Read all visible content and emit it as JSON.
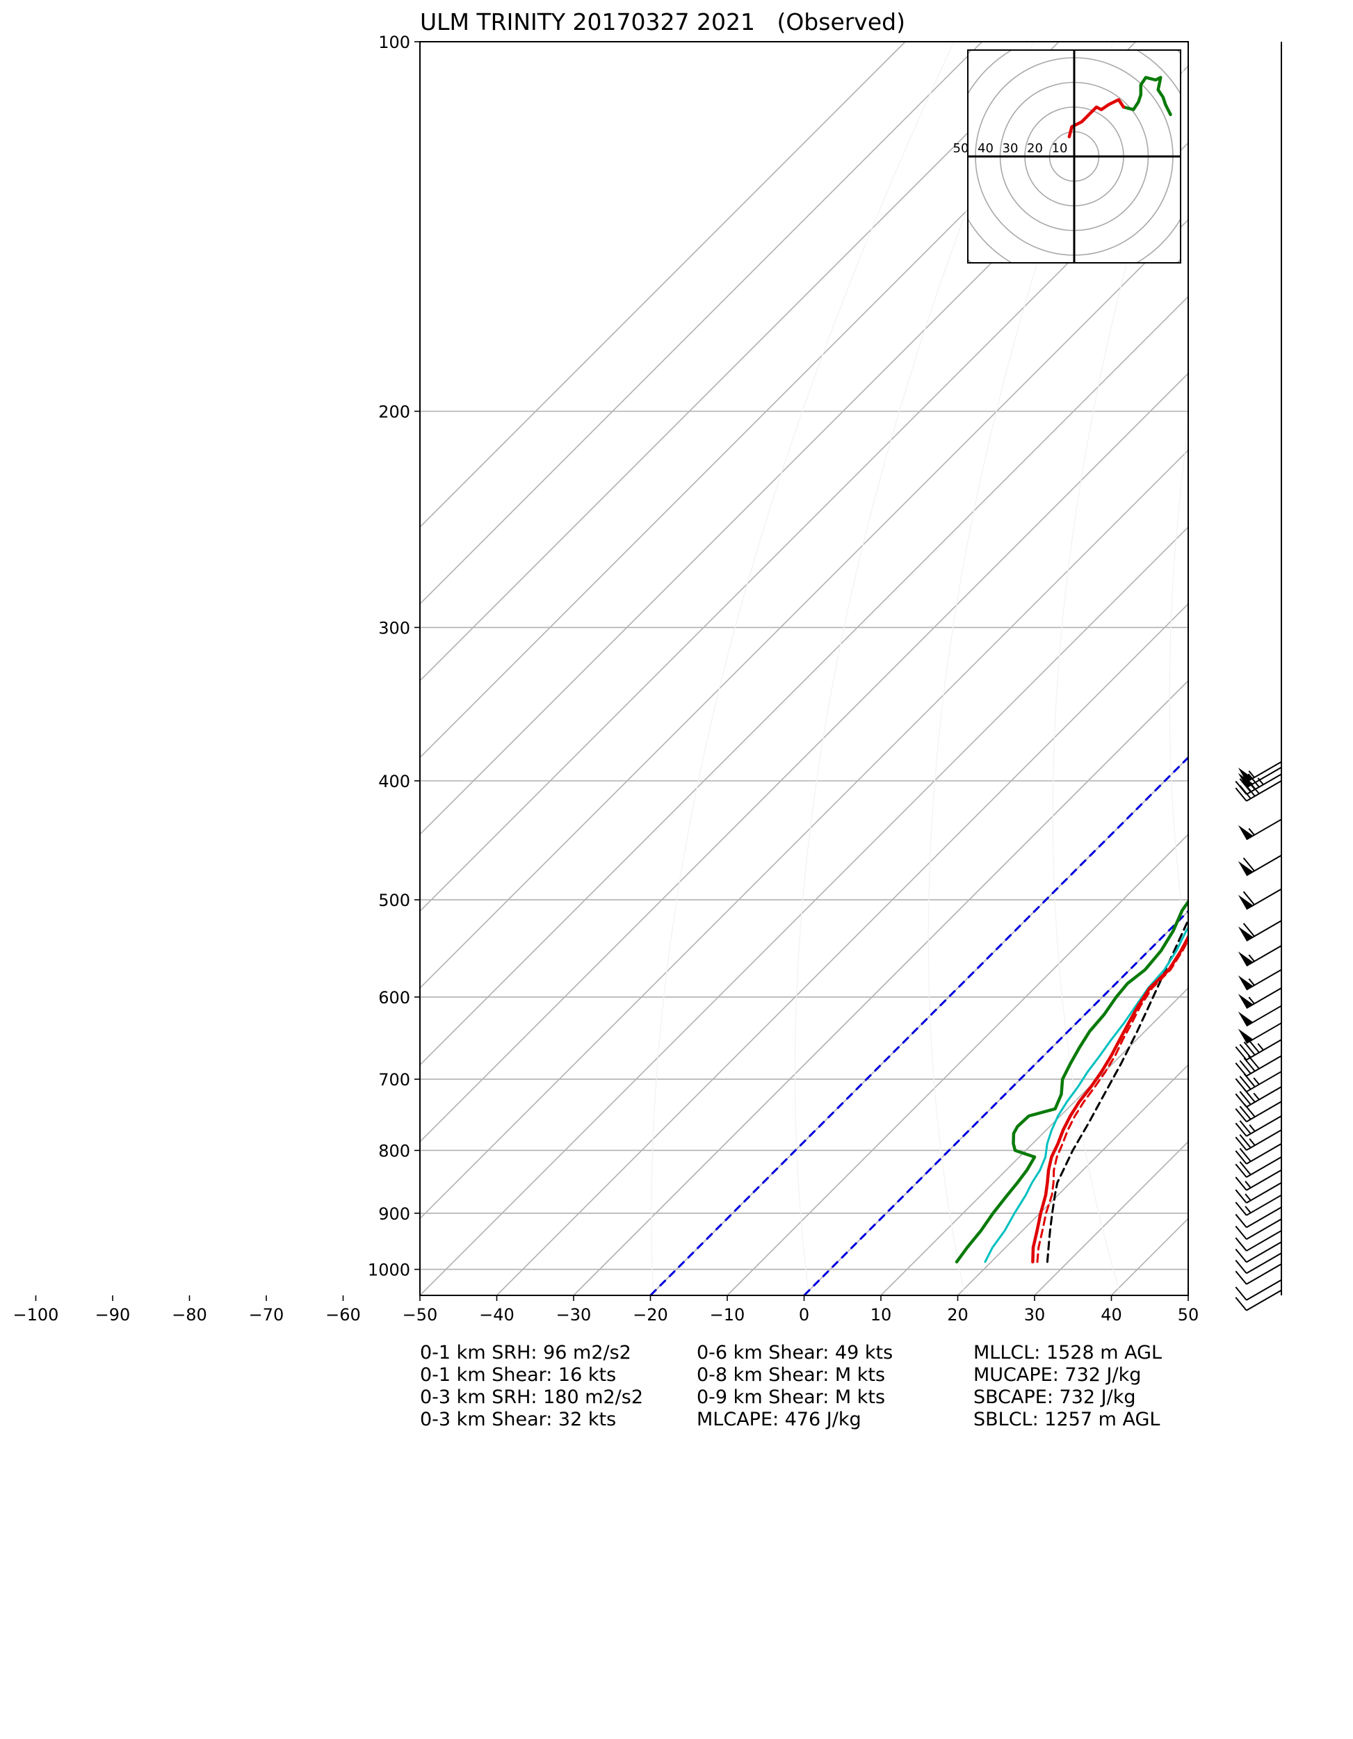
{
  "chart_data": {
    "type": "line",
    "title": "ULM TRINITY 20170327 2021   (Observed)",
    "xlabel": "",
    "ylabel": "",
    "x_ticks": [
      "−100",
      "−90",
      "−80",
      "−70",
      "−60",
      "−50",
      "−40",
      "−30",
      "−20",
      "−10",
      "0",
      "10",
      "20",
      "30",
      "40",
      "50"
    ],
    "x_tick_values": [
      -100,
      -90,
      -80,
      -70,
      -60,
      -50,
      -40,
      -30,
      -20,
      -10,
      0,
      10,
      20,
      30,
      40,
      50
    ],
    "xlim": [
      -50,
      50
    ],
    "y_ticks": [
      "100",
      "200",
      "300",
      "400",
      "500",
      "600",
      "700",
      "800",
      "900",
      "1000"
    ],
    "y_tick_values": [
      100,
      200,
      300,
      400,
      500,
      600,
      700,
      800,
      900,
      1000
    ],
    "ylim": [
      1050,
      100
    ],
    "y_scale": "log",
    "grid": true,
    "isotherm_skew": "45 degrees",
    "series": [
      {
        "key": "temperature",
        "color": "#e00000",
        "style": "solid",
        "points": [
          [
            986,
            25.4
          ],
          [
            960,
            23.6
          ],
          [
            930,
            21.9
          ],
          [
            900,
            20.1
          ],
          [
            870,
            18.4
          ],
          [
            850,
            17.0
          ],
          [
            830,
            15.5
          ],
          [
            810,
            14.2
          ],
          [
            790,
            13.3
          ],
          [
            770,
            12.2
          ],
          [
            750,
            11.3
          ],
          [
            730,
            10.6
          ],
          [
            710,
            10.2
          ],
          [
            690,
            9.6
          ],
          [
            670,
            8.8
          ],
          [
            650,
            7.8
          ],
          [
            630,
            6.8
          ],
          [
            610,
            5.8
          ],
          [
            590,
            5.0
          ],
          [
            570,
            5.1
          ],
          [
            550,
            4.2
          ],
          [
            530,
            3.0
          ],
          [
            510,
            2.3
          ],
          [
            500,
            2.0
          ],
          [
            480,
            1.3
          ],
          [
            460,
            0.7
          ],
          [
            440,
            -0.6
          ],
          [
            420,
            -1.8
          ],
          [
            400,
            -2.1
          ],
          [
            390,
            -2.5
          ]
        ]
      },
      {
        "key": "virtual_temperature",
        "color": "#e00000",
        "style": "dashed",
        "points": [
          [
            986,
            26.0
          ],
          [
            960,
            24.3
          ],
          [
            930,
            22.6
          ],
          [
            900,
            20.8
          ],
          [
            870,
            19.2
          ],
          [
            850,
            17.8
          ],
          [
            830,
            16.2
          ],
          [
            810,
            14.9
          ],
          [
            790,
            13.9
          ],
          [
            770,
            12.8
          ],
          [
            750,
            11.9
          ],
          [
            730,
            11.2
          ],
          [
            710,
            10.7
          ],
          [
            690,
            10.1
          ],
          [
            670,
            9.3
          ],
          [
            650,
            8.2
          ],
          [
            630,
            7.2
          ],
          [
            610,
            6.1
          ],
          [
            590,
            5.3
          ],
          [
            570,
            5.3
          ],
          [
            550,
            4.4
          ],
          [
            530,
            3.2
          ],
          [
            510,
            2.5
          ],
          [
            500,
            2.2
          ],
          [
            480,
            1.4
          ],
          [
            460,
            0.8
          ],
          [
            440,
            -0.5
          ],
          [
            420,
            -1.7
          ],
          [
            400,
            -2.0
          ],
          [
            390,
            -2.4
          ]
        ]
      },
      {
        "key": "wetbulb",
        "color": "#00c0c0",
        "style": "solid",
        "points": [
          [
            986,
            19.2
          ],
          [
            960,
            18.3
          ],
          [
            930,
            17.7
          ],
          [
            900,
            16.7
          ],
          [
            870,
            15.8
          ],
          [
            850,
            15.0
          ],
          [
            830,
            14.4
          ],
          [
            810,
            13.4
          ],
          [
            790,
            11.9
          ],
          [
            770,
            10.7
          ],
          [
            750,
            9.7
          ],
          [
            730,
            9.0
          ],
          [
            710,
            8.5
          ],
          [
            690,
            7.8
          ],
          [
            670,
            7.3
          ],
          [
            650,
            6.7
          ],
          [
            630,
            6.2
          ],
          [
            610,
            5.5
          ],
          [
            590,
            4.8
          ],
          [
            570,
            4.5
          ],
          [
            550,
            3.6
          ],
          [
            530,
            2.3
          ],
          [
            510,
            1.3
          ],
          [
            500,
            1.0
          ],
          [
            480,
            0.3
          ],
          [
            460,
            -0.4
          ],
          [
            440,
            -1.3
          ],
          [
            420,
            -2.4
          ],
          [
            400,
            -2.5
          ],
          [
            390,
            -2.8
          ]
        ]
      },
      {
        "key": "dewpoint",
        "color": "#0a7a0a",
        "style": "solid",
        "points": [
          [
            986,
            15.5
          ],
          [
            960,
            15.0
          ],
          [
            930,
            14.6
          ],
          [
            900,
            13.9
          ],
          [
            870,
            13.4
          ],
          [
            850,
            13.1
          ],
          [
            830,
            12.7
          ],
          [
            810,
            12.0
          ],
          [
            800,
            8.6
          ],
          [
            790,
            7.5
          ],
          [
            775,
            6.2
          ],
          [
            765,
            5.8
          ],
          [
            750,
            5.9
          ],
          [
            740,
            8.4
          ],
          [
            720,
            7.3
          ],
          [
            700,
            5.5
          ],
          [
            680,
            4.5
          ],
          [
            660,
            3.6
          ],
          [
            640,
            2.8
          ],
          [
            620,
            2.5
          ],
          [
            600,
            1.8
          ],
          [
            585,
            1.5
          ],
          [
            570,
            2.0
          ],
          [
            550,
            1.6
          ],
          [
            530,
            0.6
          ],
          [
            510,
            -0.9
          ],
          [
            490,
            -1.7
          ],
          [
            470,
            -2.8
          ],
          [
            450,
            -3.8
          ],
          [
            430,
            -4.4
          ],
          [
            410,
            -4.8
          ],
          [
            395,
            -4.8
          ],
          [
            388,
            -5.2
          ]
        ]
      },
      {
        "key": "parcel",
        "color": "#000000",
        "style": "dashed",
        "points": [
          [
            986,
            27.3
          ],
          [
            960,
            25.6
          ],
          [
            930,
            23.6
          ],
          [
            900,
            21.6
          ],
          [
            870,
            19.6
          ],
          [
            850,
            18.3
          ],
          [
            820,
            17.0
          ],
          [
            800,
            16.1
          ],
          [
            760,
            14.6
          ],
          [
            720,
            12.9
          ],
          [
            680,
            11.1
          ],
          [
            640,
            9.0
          ],
          [
            600,
            6.6
          ],
          [
            560,
            4.0
          ],
          [
            520,
            1.2
          ],
          [
            480,
            -1.9
          ],
          [
            440,
            -5.4
          ],
          [
            400,
            -9.2
          ],
          [
            390,
            -9.8
          ]
        ]
      }
    ],
    "dry_adiabats_theta_K": [
      250,
      270,
      290,
      310,
      330,
      350,
      370,
      390,
      410,
      430,
      450,
      470,
      490
    ],
    "reference_isotherms_C": [
      -20,
      0
    ],
    "wind_barbs_kts": [
      [
        386,
        55
      ],
      [
        390,
        50
      ],
      [
        395,
        45
      ],
      [
        400,
        40
      ],
      [
        430,
        55
      ],
      [
        460,
        60
      ],
      [
        490,
        60
      ],
      [
        520,
        60
      ],
      [
        545,
        55
      ],
      [
        570,
        55
      ],
      [
        590,
        55
      ],
      [
        610,
        50
      ],
      [
        630,
        50
      ],
      [
        650,
        45
      ],
      [
        670,
        40
      ],
      [
        690,
        35
      ],
      [
        710,
        35
      ],
      [
        730,
        30
      ],
      [
        750,
        25
      ],
      [
        770,
        25
      ],
      [
        790,
        20
      ],
      [
        810,
        20
      ],
      [
        830,
        15
      ],
      [
        850,
        15
      ],
      [
        870,
        15
      ],
      [
        890,
        10
      ],
      [
        910,
        10
      ],
      [
        930,
        10
      ],
      [
        950,
        10
      ],
      [
        970,
        10
      ],
      [
        990,
        10
      ],
      [
        1020,
        10
      ],
      [
        1040,
        10
      ]
    ],
    "hodograph": {
      "ring_labels": [
        "50",
        "40",
        "30",
        "20",
        "10"
      ],
      "ring_values": [
        10,
        20,
        30,
        40,
        50
      ],
      "low_level_color": "#e00000",
      "upper_level_color": "#0a7a0a",
      "low_level_uv_kts": [
        [
          -2,
          8
        ],
        [
          -1,
          12
        ],
        [
          3,
          14
        ],
        [
          6,
          17
        ],
        [
          9,
          20
        ],
        [
          11,
          19
        ],
        [
          14,
          21
        ],
        [
          16,
          22
        ],
        [
          18,
          23
        ],
        [
          20,
          20
        ]
      ],
      "upper_level_uv_kts": [
        [
          20,
          20
        ],
        [
          24,
          19
        ],
        [
          26,
          22
        ],
        [
          27,
          25
        ],
        [
          27,
          29
        ],
        [
          29,
          32
        ],
        [
          33,
          31
        ],
        [
          35,
          32
        ],
        [
          34,
          27
        ],
        [
          36,
          24
        ],
        [
          37,
          21
        ],
        [
          38,
          19
        ],
        [
          39,
          17
        ]
      ]
    },
    "annotations": {
      "col1": [
        "0-1 km SRH: 96 m2/s2",
        "0-1 km Shear: 16 kts",
        "0-3 km SRH: 180 m2/s2",
        "0-3 km Shear: 32 kts"
      ],
      "col2": [
        "0-6 km Shear: 49 kts",
        "0-8 km Shear: M kts",
        "0-9 km Shear: M kts",
        "MLCAPE: 476 J/kg"
      ],
      "col3": [
        "MLLCL: 1528 m AGL",
        "MUCAPE: 732 J/kg",
        "SBCAPE: 732 J/kg",
        "SBLCL: 1257 m AGL"
      ]
    }
  }
}
